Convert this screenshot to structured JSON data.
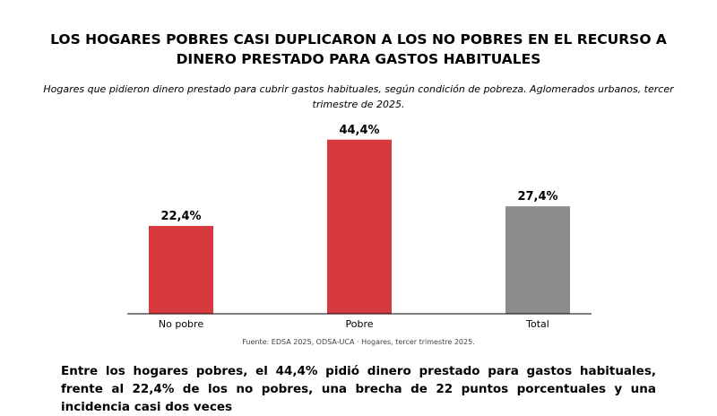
{
  "title": "LOS HOGARES POBRES CASI DUPLICARON A LOS NO POBRES EN EL RECURSO A DINERO PRESTADO PARA GASTOS HABITUALES",
  "subtitle": "Hogares que pidieron dinero prestado para cubrir gastos habituales, según condición de pobreza. Aglomerados urbanos, tercer trimestre de 2025.",
  "source": "Fuente: EDSA 2025, ODSA-UCA · Hogares, tercer trimestre 2025.",
  "body_text": "Entre los hogares pobres, el 44,4% pidió dinero prestado para gastos habituales, frente al 22,4% de los no pobres, una brecha de 22 puntos porcentuales y una incidencia casi dos veces",
  "colors": {
    "red": "#d63a3f",
    "gray": "#8c8c8c"
  },
  "chart_data": {
    "type": "bar",
    "categories": [
      "No pobre",
      "Pobre",
      "Total"
    ],
    "values": [
      22.4,
      44.4,
      27.4
    ],
    "value_labels": [
      "22,4%",
      "44,4%",
      "27,4%"
    ],
    "bar_colors": [
      "#d63a3f",
      "#d63a3f",
      "#8c8c8c"
    ],
    "ylim": [
      0,
      48
    ],
    "grid": false,
    "xlabel": "",
    "ylabel": ""
  }
}
